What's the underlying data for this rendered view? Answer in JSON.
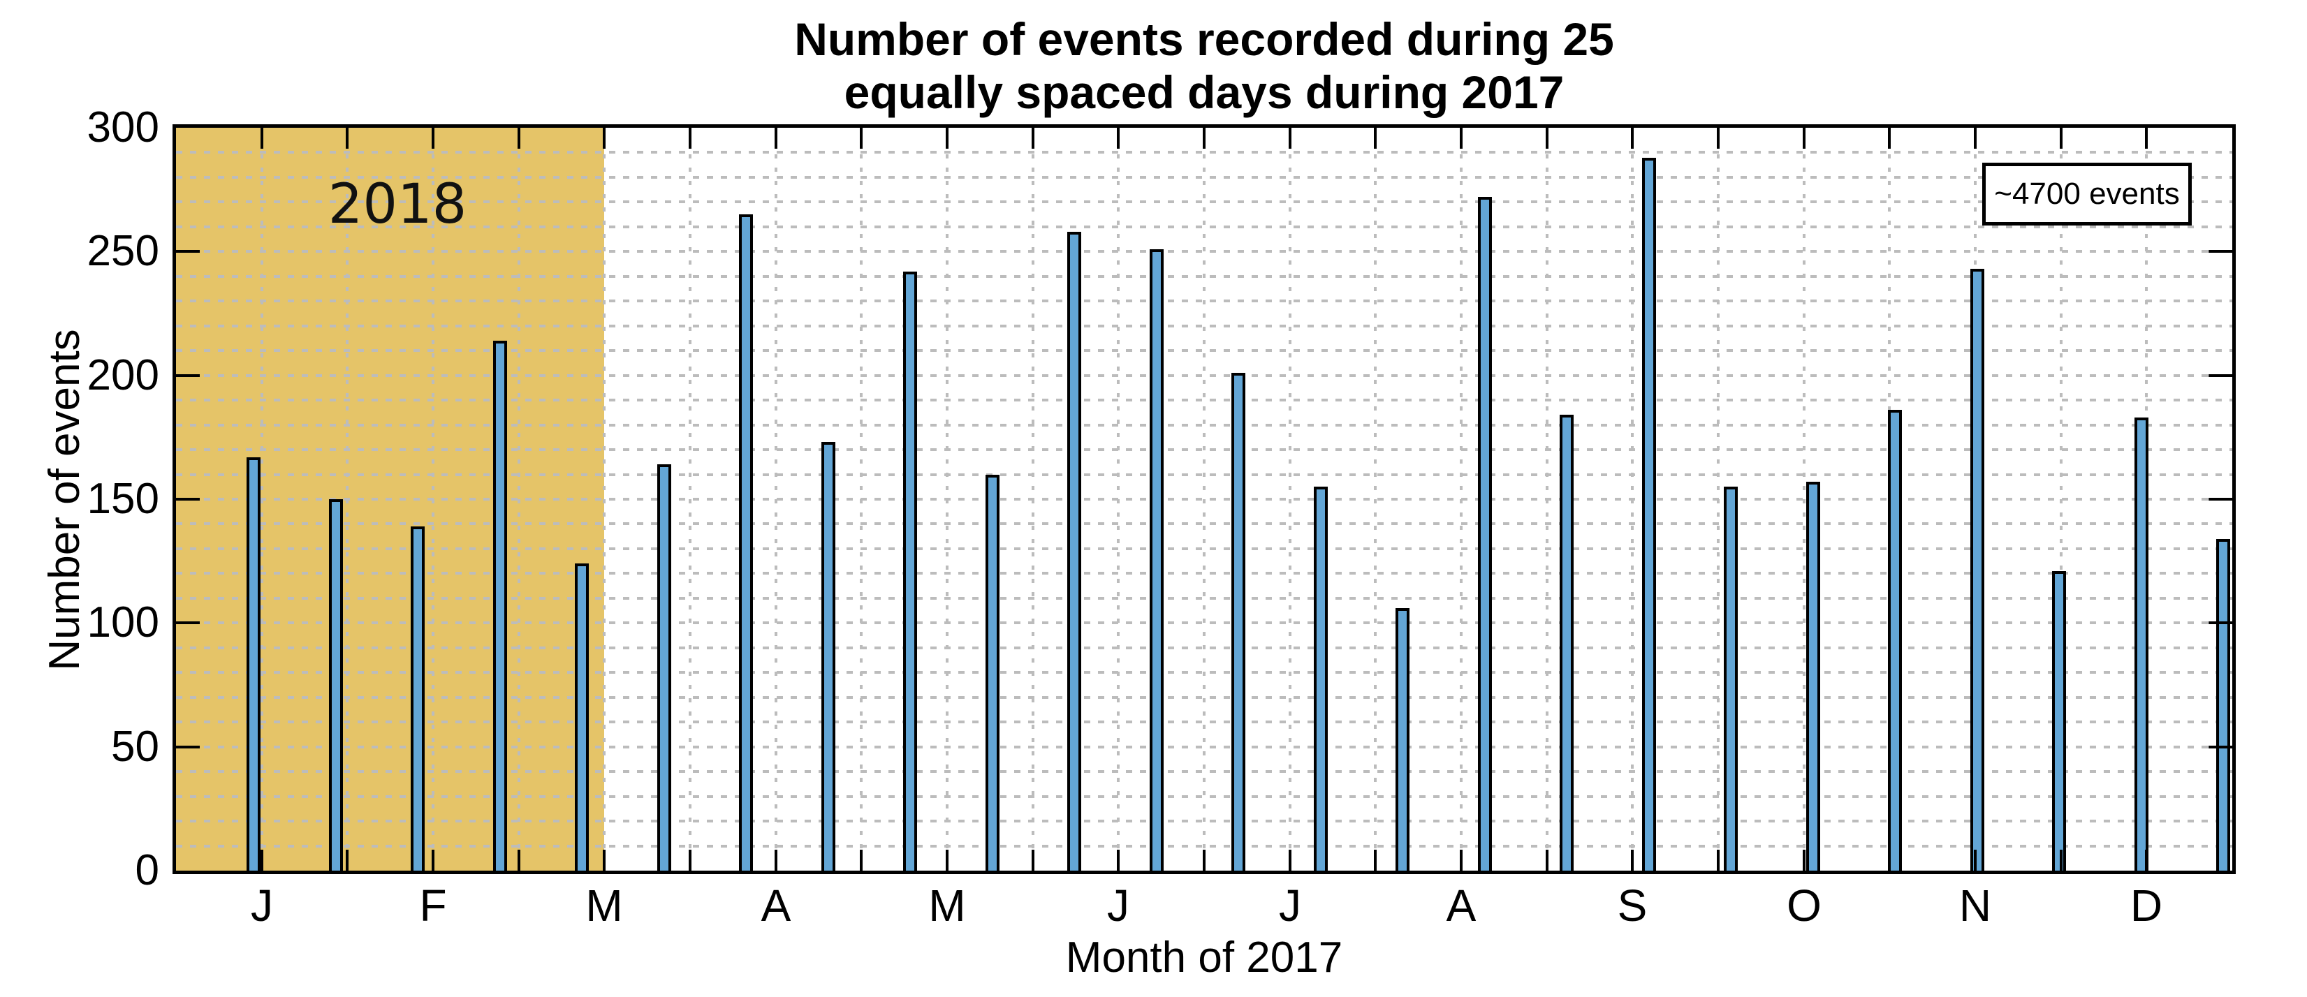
{
  "chart_data": {
    "type": "bar",
    "title_lines": [
      "Number of events recorded during 25",
      "equally spaced days during 2017"
    ],
    "xlabel": "Month of 2017",
    "ylabel": "Number of events",
    "ylim": [
      0,
      300
    ],
    "y_major_ticks": [
      0,
      50,
      100,
      150,
      200,
      250,
      300
    ],
    "y_minor_grid_step": 10,
    "x_month_labels": [
      "J",
      "F",
      "M",
      "A",
      "M",
      "J",
      "J",
      "A",
      "S",
      "O",
      "N",
      "D"
    ],
    "x_minor_divisions": 24,
    "n_bars": 25,
    "categories_note": "25 equally spaced sampling days across 2017",
    "values": [
      167,
      150,
      139,
      214,
      124,
      164,
      265,
      173,
      242,
      160,
      258,
      251,
      201,
      155,
      106,
      272,
      184,
      288,
      155,
      157,
      186,
      243,
      121,
      183,
      134
    ],
    "approx_total": "~4700 events",
    "annotation": {
      "text": "~4700 events"
    },
    "highlight_region": {
      "label": "2018",
      "start_month": 0,
      "end_month": 2.5,
      "color": "#e5c468"
    },
    "colors": {
      "bar_fill": "#63a6d6",
      "bar_edge": "#000000",
      "grid": "#bcbcbc",
      "axis": "#000000",
      "background": "#ffffff"
    },
    "grid": "minor dashed grid on both axes, major y ticks labeled every 50",
    "legend_position": "none"
  }
}
